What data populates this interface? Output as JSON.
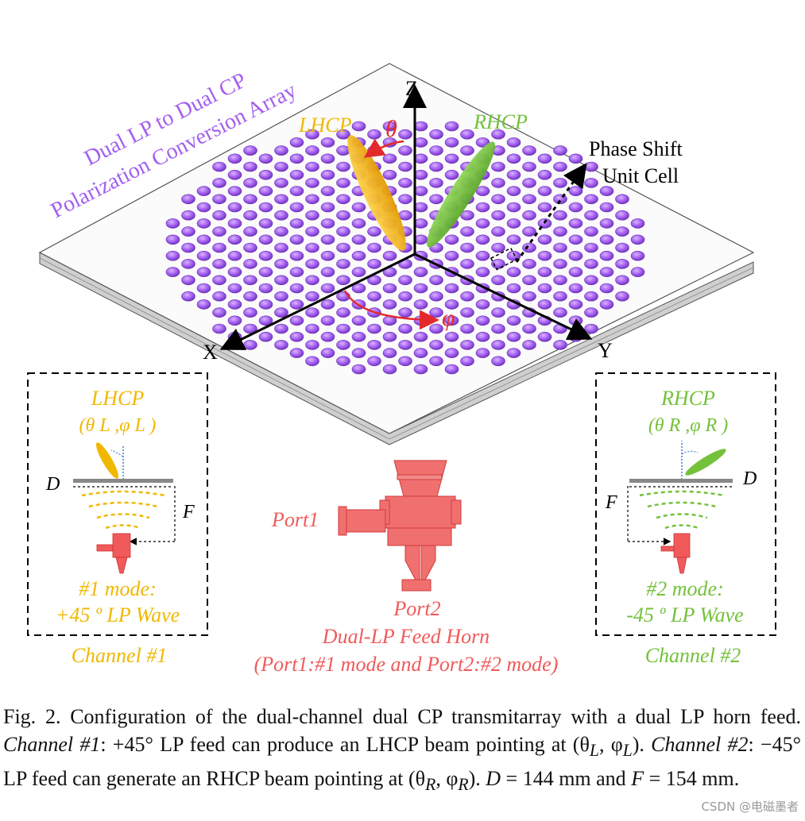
{
  "array_label": {
    "line1": "Dual LP to Dual CP",
    "line2": "Polarization Conversion Array"
  },
  "axes": {
    "x": "X",
    "y": "Y",
    "z": "Z",
    "theta": "θ",
    "phi": "φ"
  },
  "beams": {
    "left": "LHCP",
    "right": "RHCP"
  },
  "unit_cell_label": {
    "line1": "Phase Shift",
    "line2": "Unit Cell"
  },
  "channel1": {
    "pol": "LHCP",
    "angles": "(θ L ,φ L )",
    "d": "D",
    "f": "F",
    "mode_line1": "#1 mode:",
    "mode_line2": "+45 º LP Wave",
    "label": "Channel #1"
  },
  "channel2": {
    "pol": "RHCP",
    "angles": "(θ R ,φ R )",
    "d": "D",
    "f": "F",
    "mode_line1": "#2 mode:",
    "mode_line2": "-45 º LP Wave",
    "label": "Channel #2"
  },
  "feed": {
    "port1": "Port1",
    "port2": "Port2",
    "title": "Dual-LP Feed Horn",
    "subtitle": "(Port1:#1 mode and Port2:#2 mode)"
  },
  "caption": {
    "prefix": "Fig. 2.",
    "p1": " Configuration of the dual-channel dual CP transmitarray with a dual LP horn feed. ",
    "ch1": "Channel #1",
    "p2": ": +45° LP feed can produce an LHCP beam pointing at (θ",
    "sub_l": "L",
    "p3": ", φ",
    "p4": "). ",
    "ch2": "Channel #2",
    "p5": ": −45° LP feed can generate an RHCP beam pointing at (θ",
    "sub_r": "R",
    "p6": ", φ",
    "p7": "). ",
    "d_sym": "D",
    "p8": " = 144 mm and ",
    "f_sym": "F",
    "p9": " = 154 mm."
  },
  "watermark": "CSDN @电磁墨者",
  "colors": {
    "purple": "#a35ff0",
    "lhcp": "#f0b800",
    "rhcp": "#74c13a",
    "red": "#e32a2a",
    "feed": "#f05a5a"
  }
}
